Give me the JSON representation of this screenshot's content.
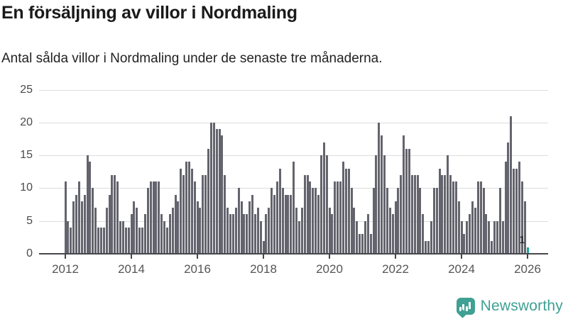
{
  "header": {
    "title": "En försäljning av villor i Nordmaling",
    "subtitle": "Antal sålda villor i Nordmaling under de senaste tre månaderna."
  },
  "chart_data": {
    "type": "bar",
    "title": "En försäljning av villor i Nordmaling",
    "subtitle": "Antal sålda villor i Nordmaling under de senaste tre månaderna.",
    "x_start": "2012-01",
    "x_interval": "month",
    "x_end": "2026-01",
    "x_tick_labels": [
      "2012",
      "2014",
      "2016",
      "2018",
      "2020",
      "2022",
      "2024",
      "2026"
    ],
    "y_ticks": [
      0,
      5,
      10,
      15,
      20,
      25
    ],
    "ylim": [
      0,
      25
    ],
    "grid": true,
    "bar_color": "#64646e",
    "highlight_color": "#17a89f",
    "series": [
      {
        "name": "Antal sålda villor (rullande tre månader)",
        "values": [
          11,
          5,
          4,
          8,
          9,
          11,
          8,
          9,
          15,
          14,
          10,
          7,
          4,
          4,
          4,
          7,
          9,
          12,
          12,
          11,
          5,
          5,
          4,
          4,
          6,
          8,
          7,
          4,
          4,
          6,
          10,
          11,
          11,
          11,
          11,
          6,
          5,
          4,
          6,
          7,
          9,
          8,
          13,
          12,
          14,
          14,
          13,
          11,
          8,
          7,
          12,
          12,
          16,
          20,
          20,
          19,
          19,
          18,
          12,
          7,
          6,
          6,
          7,
          10,
          8,
          6,
          6,
          8,
          9,
          6,
          7,
          5,
          2,
          6,
          7,
          10,
          9,
          11,
          13,
          10,
          9,
          9,
          9,
          14,
          7,
          5,
          7,
          12,
          12,
          11,
          10,
          10,
          9,
          15,
          17,
          15,
          7,
          6,
          11,
          11,
          11,
          14,
          13,
          13,
          10,
          7,
          5,
          3,
          3,
          5,
          6,
          3,
          10,
          15,
          20,
          18,
          15,
          10,
          7,
          6,
          8,
          10,
          12,
          18,
          16,
          16,
          12,
          12,
          12,
          10,
          6,
          2,
          2,
          5,
          10,
          10,
          13,
          12,
          12,
          15,
          12,
          11,
          11,
          8,
          5,
          3,
          5,
          6,
          8,
          7,
          11,
          11,
          10,
          6,
          5,
          2,
          5,
          5,
          10,
          5,
          14,
          17,
          21,
          13,
          13,
          14,
          11,
          8,
          1
        ]
      }
    ],
    "annotation": {
      "text": "1",
      "attached_to_last_bar": true
    }
  },
  "footer": {
    "brand": "Newsworthy",
    "logo_icon": "newsworthy-speech-bubble-chart-icon",
    "brand_color": "#3fa093"
  }
}
